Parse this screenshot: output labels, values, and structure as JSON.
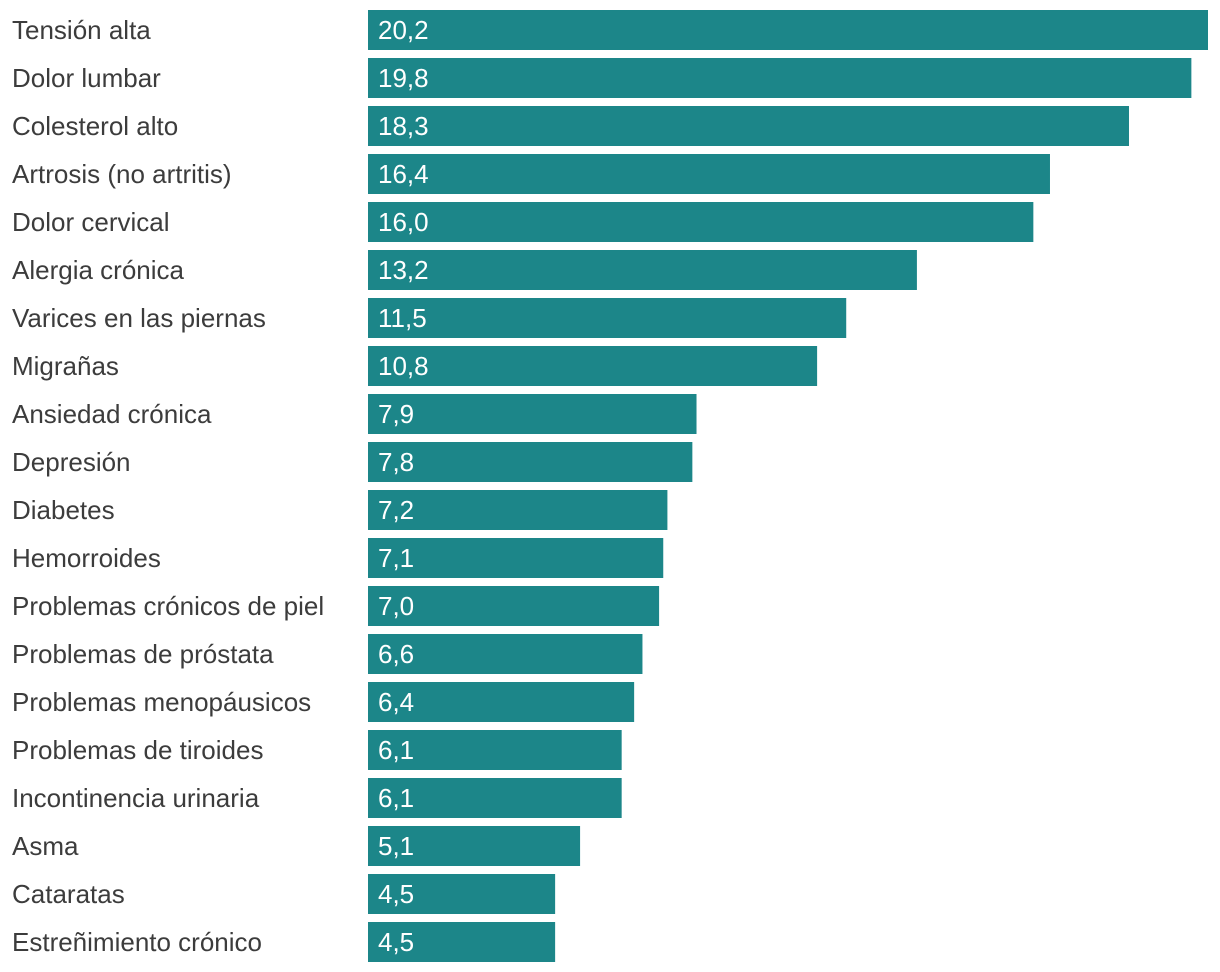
{
  "chart_data": {
    "type": "bar",
    "orientation": "horizontal",
    "title": "",
    "xlabel": "",
    "ylabel": "",
    "xlim": [
      0,
      20.2
    ],
    "grid": false,
    "legend": "none",
    "bar_color": "#1c8689",
    "categories": [
      "Tensión alta",
      "Dolor lumbar",
      "Colesterol alto",
      "Artrosis (no artritis)",
      "Dolor cervical",
      "Alergia crónica",
      "Varices en las piernas",
      "Migrañas",
      "Ansiedad crónica",
      "Depresión",
      "Diabetes",
      "Hemorroides",
      "Problemas crónicos de piel",
      "Problemas de próstata",
      "Problemas menopáusicos",
      "Problemas de tiroides",
      "Incontinencia urinaria",
      "Asma",
      "Cataratas",
      "Estreñimiento crónico"
    ],
    "values": [
      20.2,
      19.8,
      18.3,
      16.4,
      16.0,
      13.2,
      11.5,
      10.8,
      7.9,
      7.8,
      7.2,
      7.1,
      7.0,
      6.6,
      6.4,
      6.1,
      6.1,
      5.1,
      4.5,
      4.5
    ],
    "value_labels": [
      "20,2",
      "19,8",
      "18,3",
      "16,4",
      "16,0",
      "13,2",
      "11,5",
      "10,8",
      "7,9",
      "7,8",
      "7,2",
      "7,1",
      "7,0",
      "6,6",
      "6,4",
      "6,1",
      "6,1",
      "5,1",
      "4,5",
      "4,5"
    ]
  }
}
